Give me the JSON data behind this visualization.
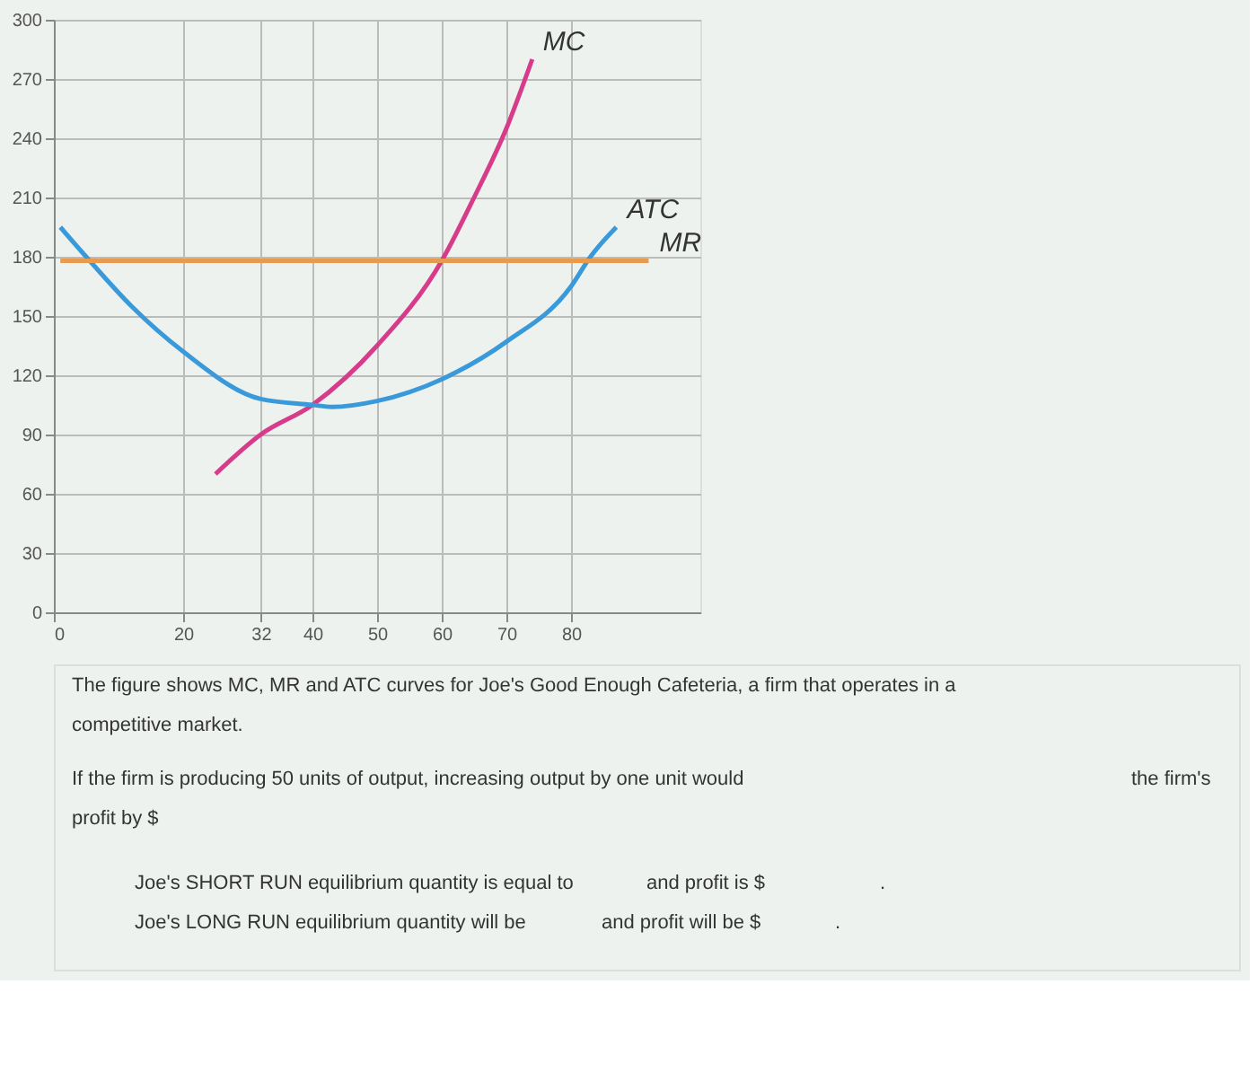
{
  "chart_data": {
    "type": "line",
    "xlim": [
      0,
      100
    ],
    "xticks": [
      0,
      20,
      32,
      40,
      50,
      60,
      70,
      80
    ],
    "ylim": [
      0,
      300
    ],
    "yticks": [
      0,
      30,
      60,
      90,
      120,
      150,
      180,
      210,
      240,
      270,
      300
    ],
    "grid": true,
    "legend": false,
    "marker": "none",
    "line_style": "solid",
    "series": [
      {
        "name": "MC",
        "color": "#d63c8a",
        "x": [
          25,
          32,
          40,
          50,
          60,
          65,
          70,
          74
        ],
        "values": [
          70,
          90,
          105,
          135,
          178,
          210,
          245,
          280
        ]
      },
      {
        "name": "ATC",
        "color": "#3a9ad9",
        "x": [
          1,
          5,
          12,
          20,
          32,
          40,
          43,
          50,
          60,
          70,
          80,
          83,
          87
        ],
        "values": [
          195,
          180,
          155,
          132,
          108,
          105,
          104,
          107,
          118,
          137,
          165,
          180,
          195
        ]
      },
      {
        "name": "MR",
        "color": "#e89a4f",
        "x": [
          1,
          92
        ],
        "values": [
          178,
          178
        ]
      }
    ],
    "annotations": [
      "The figure shows MC, MR and ATC curves for Joe's Good Enough Cafeteria, a firm that operates in a competitive market.",
      "If the firm is producing 50 units of output, increasing output by one unit would",
      "the firm's",
      "profit by $",
      "Joe's SHORT RUN equilibrium quantity is equal to",
      "and profit is $",
      ".",
      "Joe's LONG RUN equilibrium quantity will be",
      "and profit will be $",
      "."
    ]
  }
}
